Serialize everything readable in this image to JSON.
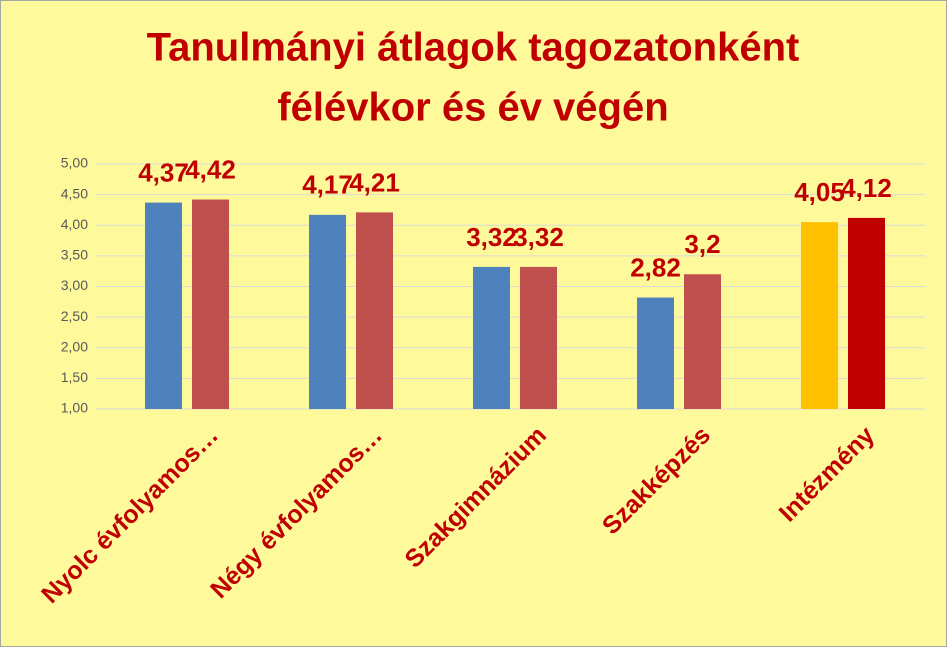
{
  "chart_data": {
    "type": "bar",
    "title": [
      "Tanulmányi átlagok tagozatonként",
      "félévkor és év végén"
    ],
    "categories": [
      "Nyolc évfolyamos…",
      "Négy évfolyamos…",
      "Szakgimnázium",
      "Szakképzés",
      "Intézmény"
    ],
    "series": [
      {
        "color": "#4f81bd",
        "colors": [
          "#4f81bd",
          "#4f81bd",
          "#4f81bd",
          "#4f81bd",
          "#ffc000"
        ],
        "values": [
          4.37,
          4.17,
          3.32,
          2.82,
          4.05
        ],
        "value_labels": [
          "4,37",
          "4,17",
          "3,32",
          "2,82",
          "4,05"
        ]
      },
      {
        "color": "#c0504d",
        "colors": [
          "#c0504d",
          "#c0504d",
          "#c0504d",
          "#c0504d",
          "#c00000"
        ],
        "values": [
          4.42,
          4.21,
          3.32,
          3.2,
          4.12
        ],
        "value_labels": [
          "4,42",
          "4,21",
          "3,32",
          "3,2",
          "4,12"
        ]
      }
    ],
    "ylim": [
      1,
      5
    ],
    "yticks": [
      {
        "value": 1,
        "label": "1,00"
      },
      {
        "value": 1.5,
        "label": "1,50"
      },
      {
        "value": 2,
        "label": "2,00"
      },
      {
        "value": 2.5,
        "label": "2,50"
      },
      {
        "value": 3,
        "label": "3,00"
      },
      {
        "value": 3.5,
        "label": "3,50"
      },
      {
        "value": 4,
        "label": "4,00"
      },
      {
        "value": 4.5,
        "label": "4,50"
      },
      {
        "value": 5,
        "label": "5,00"
      }
    ],
    "grid": true
  }
}
